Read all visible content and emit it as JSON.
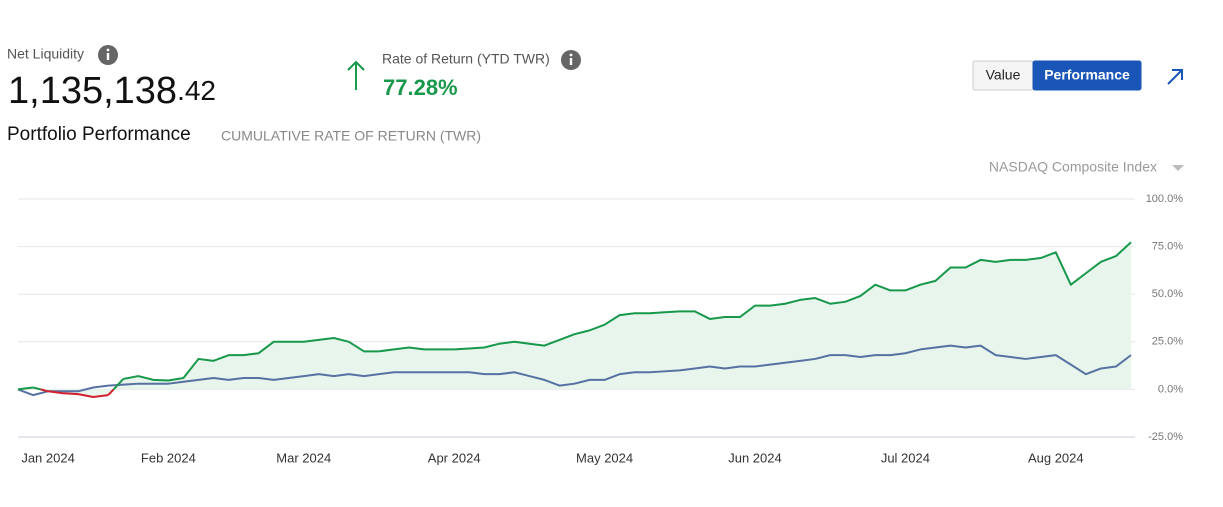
{
  "header": {
    "net_liquidity_label": "Net Liquidity",
    "net_liquidity_main": "1,135,138",
    "net_liquidity_cents": ".42",
    "return_label": "Rate of Return (YTD TWR)",
    "return_value": "77.28%",
    "buttons": [
      {
        "label": "Value",
        "active": false
      },
      {
        "label": "Performance",
        "active": true
      }
    ]
  },
  "chart_data": {
    "type": "line",
    "title": "Portfolio Performance",
    "subtitle": "CUMULATIVE RATE OF RETURN (TWR)",
    "categories": [
      null,
      null,
      "Jan 2024",
      null,
      null,
      null,
      null,
      null,
      null,
      null,
      "Feb 2024",
      null,
      null,
      null,
      null,
      null,
      null,
      null,
      null,
      "Mar 2024",
      null,
      null,
      null,
      null,
      null,
      null,
      null,
      null,
      null,
      "Apr 2024",
      null,
      null,
      null,
      null,
      null,
      null,
      null,
      null,
      null,
      "May 2024",
      null,
      null,
      null,
      null,
      null,
      null,
      null,
      null,
      null,
      "Jun 2024",
      null,
      null,
      null,
      null,
      null,
      null,
      null,
      null,
      null,
      "Jul 2024",
      null,
      null,
      null,
      null,
      null,
      null,
      null,
      null,
      null,
      "Aug 2024",
      null,
      null,
      null,
      null,
      null
    ],
    "series": [
      {
        "color": "#17984a",
        "negative_color": "#d3202f",
        "fill_color": "#e7f5ec",
        "values": [
          0,
          1,
          -1,
          -2,
          -2.5,
          -4,
          -3,
          5.5,
          7,
          5,
          4.7,
          6,
          16,
          15,
          18,
          18,
          19,
          25,
          25,
          25,
          26,
          27,
          25,
          20,
          20,
          21,
          22,
          21,
          21,
          21,
          21.5,
          22,
          24,
          25,
          24,
          23,
          26,
          29,
          31,
          34,
          39,
          40,
          40,
          40.5,
          41,
          41,
          37,
          38,
          38,
          44,
          44,
          45,
          47,
          48,
          45,
          46,
          49,
          55,
          52,
          52,
          55,
          57,
          64,
          64,
          68,
          67,
          68,
          68,
          69,
          72,
          55,
          61,
          67,
          70,
          77.28
        ]
      },
      {
        "name": "NASDAQ Composite Index",
        "color": "#5672a2",
        "values": [
          0,
          -3,
          -1,
          -1,
          -1,
          1,
          2,
          2.5,
          3,
          3,
          3,
          4,
          5,
          6,
          5,
          6,
          6,
          5,
          6,
          7,
          8,
          7,
          8,
          7,
          8,
          9,
          9,
          9,
          9,
          9,
          9,
          8,
          8,
          9,
          7,
          5,
          2,
          3,
          5,
          5,
          8,
          9,
          9,
          9.5,
          10,
          11,
          12,
          11,
          12,
          12,
          13,
          14,
          15,
          16,
          18,
          18,
          17,
          18,
          18,
          19,
          21,
          22,
          23,
          22,
          23,
          18,
          17,
          16,
          17,
          18,
          13,
          8,
          11,
          12,
          18
        ]
      }
    ],
    "ylim": [
      -25,
      100
    ],
    "yticks": [
      {
        "value": -25,
        "label": "-25.0%"
      },
      {
        "value": 0,
        "label": "0.0%"
      },
      {
        "value": 25,
        "label": "25.0%"
      },
      {
        "value": 50,
        "label": "50.0%"
      },
      {
        "value": 75,
        "label": "75.0%"
      },
      {
        "value": 100,
        "label": "100.0%"
      }
    ],
    "grid": true
  }
}
